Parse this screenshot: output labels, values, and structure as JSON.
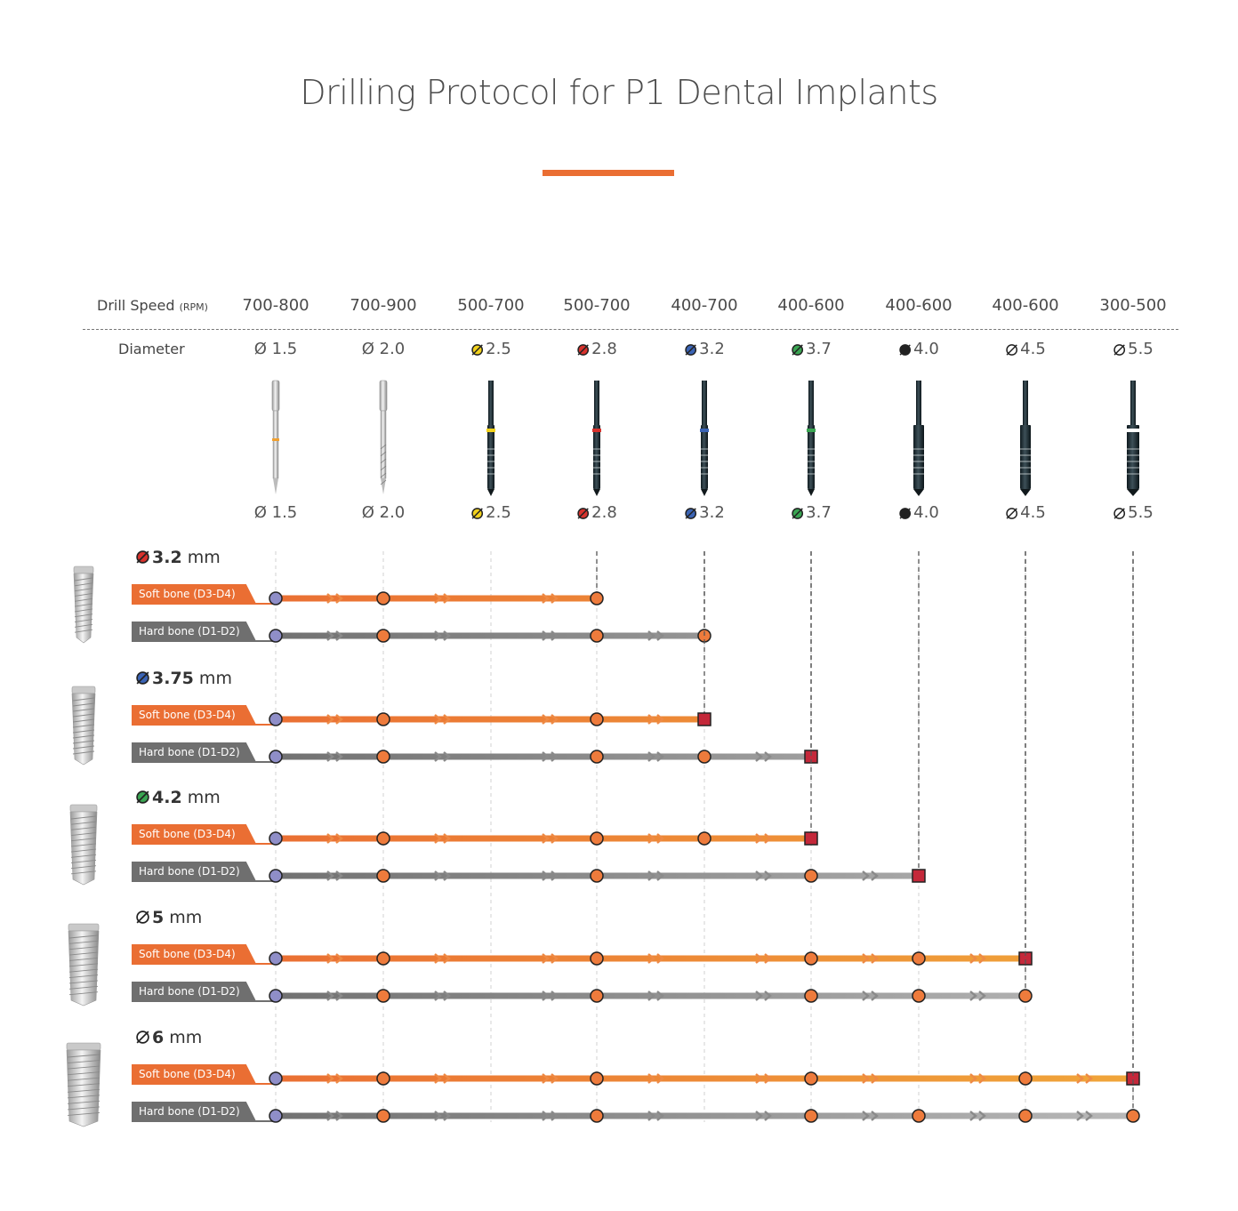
{
  "title": "Drilling Protocol for P1 Dental Implants",
  "header": {
    "speed_label": "Drill Speed",
    "speed_unit": "(RPM)",
    "diameter_label": "Diameter"
  },
  "colors": {
    "accent": "#ea6e33",
    "soft_bone": "#ea6e33",
    "hard_bone": "#6f6f6f",
    "start_step": "#8f8ec8",
    "step": "#ee7b3c",
    "final_step": "#c4283a"
  },
  "drills": [
    {
      "speed": "700-800",
      "diameter": "Ø 1.5",
      "code_color": "",
      "kind": "silver-pilot",
      "band": "#f0a030"
    },
    {
      "speed": "700-900",
      "diameter": "Ø 2.0",
      "code_color": "",
      "kind": "silver-twist",
      "band": ""
    },
    {
      "speed": "500-700",
      "diameter": "2.5",
      "code_color": "#f2d21c",
      "kind": "dark",
      "band": "#f2d21c"
    },
    {
      "speed": "500-700",
      "diameter": "2.8",
      "code_color": "#d8322d",
      "kind": "dark",
      "band": "#d8322d"
    },
    {
      "speed": "400-700",
      "diameter": "3.2",
      "code_color": "#3b64b5",
      "kind": "dark",
      "band": "#3b64b5"
    },
    {
      "speed": "400-600",
      "diameter": "3.7",
      "code_color": "#3aa552",
      "kind": "dark",
      "band": "#3aa552"
    },
    {
      "speed": "400-600",
      "diameter": "4.0",
      "code_color": "#222222",
      "kind": "dark-wide",
      "band": ""
    },
    {
      "speed": "400-600",
      "diameter": "4.5",
      "code_color": "#ffffff",
      "kind": "dark-wide",
      "band": ""
    },
    {
      "speed": "300-500",
      "diameter": "5.5",
      "code_color": "#ffffff",
      "kind": "dark-wider",
      "band": "#ffffff"
    }
  ],
  "groups": [
    {
      "value": "3.2",
      "unit": "mm",
      "code_color": "#d8322d",
      "soft": {
        "label": "Soft bone (D3-D4)",
        "steps": [
          0,
          1,
          3
        ],
        "end": "circle"
      },
      "hard": {
        "label": "Hard bone (D1-D2)",
        "steps": [
          0,
          1,
          3,
          4
        ],
        "end": "circle"
      }
    },
    {
      "value": "3.75",
      "unit": "mm",
      "code_color": "#3b64b5",
      "soft": {
        "label": "Soft bone (D3-D4)",
        "steps": [
          0,
          1,
          3,
          4
        ],
        "end": "square"
      },
      "hard": {
        "label": "Hard bone (D1-D2)",
        "steps": [
          0,
          1,
          3,
          4,
          5
        ],
        "end": "square"
      }
    },
    {
      "value": "4.2",
      "unit": "mm",
      "code_color": "#3aa552",
      "soft": {
        "label": "Soft bone (D3-D4)",
        "steps": [
          0,
          1,
          3,
          4,
          5
        ],
        "end": "square"
      },
      "hard": {
        "label": "Hard bone (D1-D2)",
        "steps": [
          0,
          1,
          3,
          5,
          6
        ],
        "end": "square"
      }
    },
    {
      "value": "5",
      "unit": "mm",
      "code_color": "#ffffff",
      "soft": {
        "label": "Soft bone (D3-D4)",
        "steps": [
          0,
          1,
          3,
          5,
          6,
          7
        ],
        "end": "square"
      },
      "hard": {
        "label": "Hard bone (D1-D2)",
        "steps": [
          0,
          1,
          3,
          5,
          6,
          7
        ],
        "end": "circle"
      }
    },
    {
      "value": "6",
      "unit": "mm",
      "code_color": "#ffffff",
      "soft": {
        "label": "Soft bone (D3-D4)",
        "steps": [
          0,
          1,
          3,
          5,
          7,
          8
        ],
        "end": "square"
      },
      "hard": {
        "label": "Hard bone (D1-D2)",
        "steps": [
          0,
          1,
          3,
          5,
          6,
          7,
          8
        ],
        "end": "circle"
      }
    }
  ]
}
